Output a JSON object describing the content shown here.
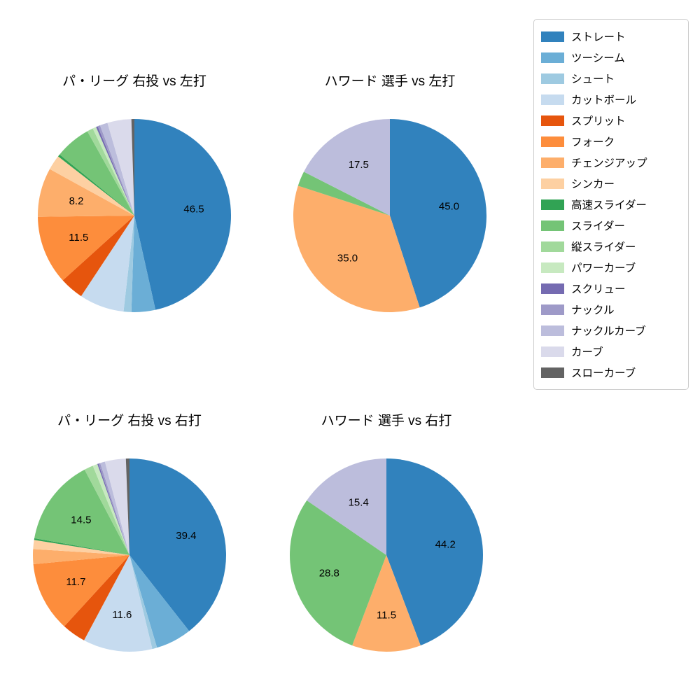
{
  "figure": {
    "background": "#ffffff",
    "label_color": "#000000"
  },
  "legend": {
    "position": "top-right",
    "items": [
      {
        "label": "ストレート",
        "color": "#3182bd"
      },
      {
        "label": "ツーシーム",
        "color": "#6baed6"
      },
      {
        "label": "シュート",
        "color": "#9ecae1"
      },
      {
        "label": "カットボール",
        "color": "#c6dbef"
      },
      {
        "label": "スプリット",
        "color": "#e6550d"
      },
      {
        "label": "フォーク",
        "color": "#fd8d3c"
      },
      {
        "label": "チェンジアップ",
        "color": "#fdae6b"
      },
      {
        "label": "シンカー",
        "color": "#fdd0a2"
      },
      {
        "label": "高速スライダー",
        "color": "#31a354"
      },
      {
        "label": "スライダー",
        "color": "#74c476"
      },
      {
        "label": "縦スライダー",
        "color": "#a1d99b"
      },
      {
        "label": "パワーカーブ",
        "color": "#c7e9c0"
      },
      {
        "label": "スクリュー",
        "color": "#756bb1"
      },
      {
        "label": "ナックル",
        "color": "#9e9ac8"
      },
      {
        "label": "ナックルカーブ",
        "color": "#bcbddc"
      },
      {
        "label": "カーブ",
        "color": "#dadaeb"
      },
      {
        "label": "スローカーブ",
        "color": "#636363"
      }
    ]
  },
  "chart_style": {
    "start_angle": "12-oclock",
    "direction": "clockwise",
    "label_threshold_pct": 8,
    "label_radius_ratio": 0.62,
    "value_decimals": 1
  },
  "chart_data": [
    {
      "type": "pie",
      "title": "パ・リーグ 右投 vs 左打",
      "labeled_values": [
        46.5,
        11.5,
        8.2
      ],
      "slices": [
        {
          "label": "ストレート",
          "value": 46.5
        },
        {
          "label": "ツーシーム",
          "value": 4.0
        },
        {
          "label": "シュート",
          "value": 1.3
        },
        {
          "label": "カットボール",
          "value": 7.5
        },
        {
          "label": "スプリット",
          "value": 4.0
        },
        {
          "label": "フォーク",
          "value": 11.5
        },
        {
          "label": "チェンジアップ",
          "value": 8.2
        },
        {
          "label": "シンカー",
          "value": 2.5
        },
        {
          "label": "高速スライダー",
          "value": 0.4
        },
        {
          "label": "スライダー",
          "value": 6.0
        },
        {
          "label": "縦スライダー",
          "value": 1.0
        },
        {
          "label": "パワーカーブ",
          "value": 0.6
        },
        {
          "label": "スクリュー",
          "value": 0.3
        },
        {
          "label": "ナックル",
          "value": 0.4
        },
        {
          "label": "ナックルカーブ",
          "value": 1.3
        },
        {
          "label": "カーブ",
          "value": 4.0
        },
        {
          "label": "スローカーブ",
          "value": 0.5
        }
      ]
    },
    {
      "type": "pie",
      "title": "ハワード 選手 vs 左打",
      "labeled_values": [
        45.0,
        35.0,
        17.5
      ],
      "slices": [
        {
          "label": "ストレート",
          "value": 45.0
        },
        {
          "label": "チェンジアップ",
          "value": 35.0
        },
        {
          "label": "スライダー",
          "value": 2.5
        },
        {
          "label": "ナックルカーブ",
          "value": 17.5
        }
      ]
    },
    {
      "type": "pie",
      "title": "パ・リーグ 右投 vs 右打",
      "labeled_values": [
        39.4,
        11.6,
        11.7,
        14.5
      ],
      "slices": [
        {
          "label": "ストレート",
          "value": 39.4
        },
        {
          "label": "ツーシーム",
          "value": 6.0
        },
        {
          "label": "シュート",
          "value": 0.8
        },
        {
          "label": "カットボール",
          "value": 11.6
        },
        {
          "label": "スプリット",
          "value": 4.0
        },
        {
          "label": "フォーク",
          "value": 11.7
        },
        {
          "label": "チェンジアップ",
          "value": 2.5
        },
        {
          "label": "シンカー",
          "value": 1.5
        },
        {
          "label": "高速スライダー",
          "value": 0.3
        },
        {
          "label": "スライダー",
          "value": 14.5
        },
        {
          "label": "縦スライダー",
          "value": 1.5
        },
        {
          "label": "パワーカーブ",
          "value": 0.8
        },
        {
          "label": "スクリュー",
          "value": 0.2
        },
        {
          "label": "ナックル",
          "value": 0.3
        },
        {
          "label": "ナックルカーブ",
          "value": 0.8
        },
        {
          "label": "カーブ",
          "value": 3.5
        },
        {
          "label": "スローカーブ",
          "value": 0.6
        }
      ]
    },
    {
      "type": "pie",
      "title": "ハワード 選手 vs 右打",
      "labeled_values": [
        44.2,
        11.5,
        28.8,
        15.4
      ],
      "slices": [
        {
          "label": "ストレート",
          "value": 44.2
        },
        {
          "label": "チェンジアップ",
          "value": 11.5
        },
        {
          "label": "スライダー",
          "value": 28.8
        },
        {
          "label": "ナックルカーブ",
          "value": 15.4
        }
      ]
    }
  ]
}
